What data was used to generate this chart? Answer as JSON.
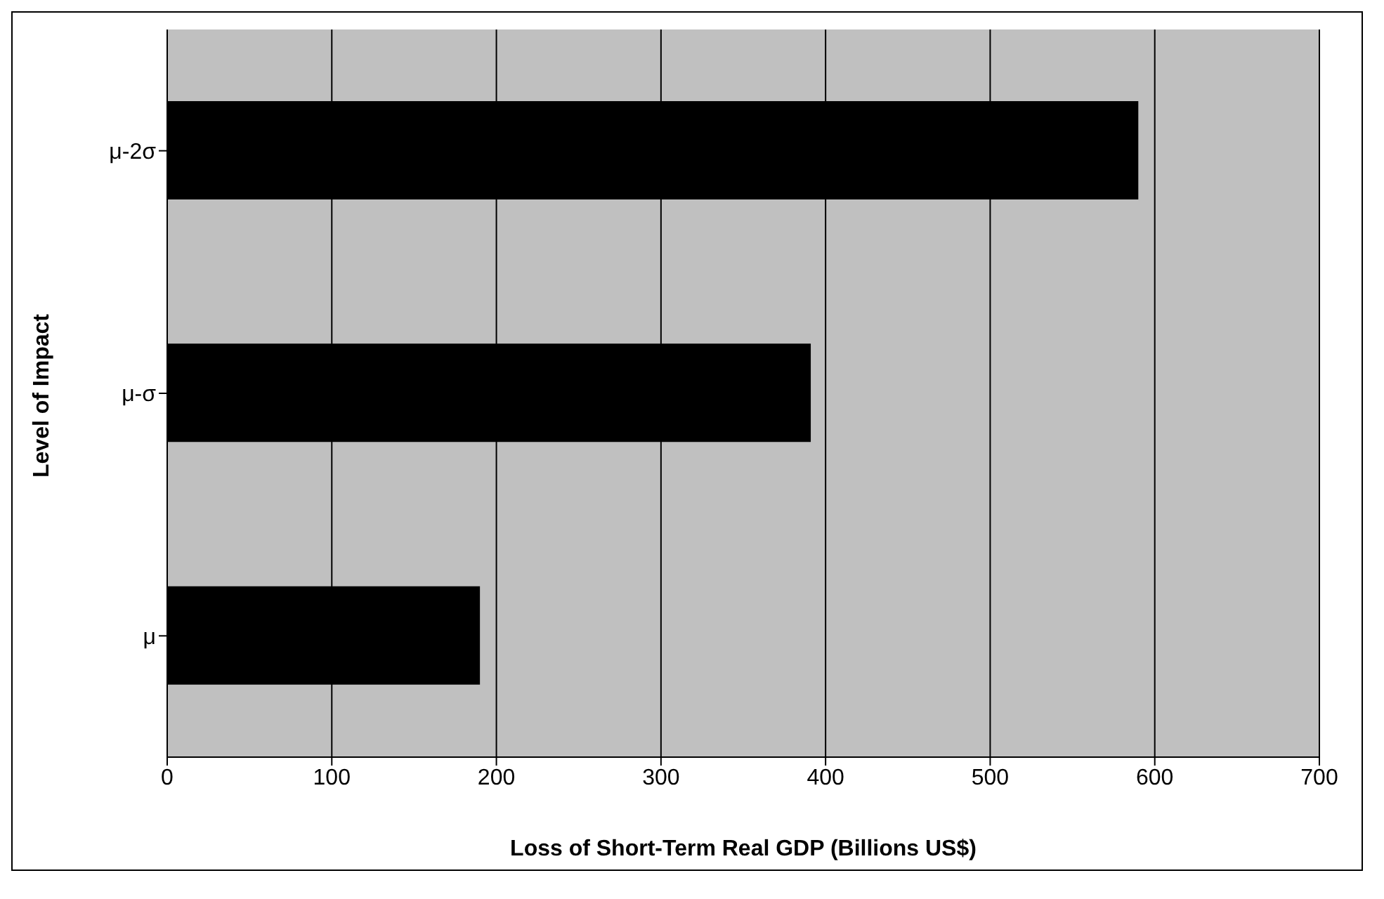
{
  "chart_data": {
    "type": "bar",
    "orientation": "horizontal",
    "xlabel": "Loss of Short-Term Real GDP (Billions US$)",
    "ylabel": "Level of Impact",
    "categories": [
      "μ-2σ",
      "μ-σ",
      "μ"
    ],
    "values": [
      590,
      391,
      190
    ],
    "color": "#000000",
    "xlim": [
      0,
      700
    ],
    "xticks": [
      0,
      100,
      200,
      300,
      400,
      500,
      600,
      700
    ],
    "grid": "x"
  }
}
